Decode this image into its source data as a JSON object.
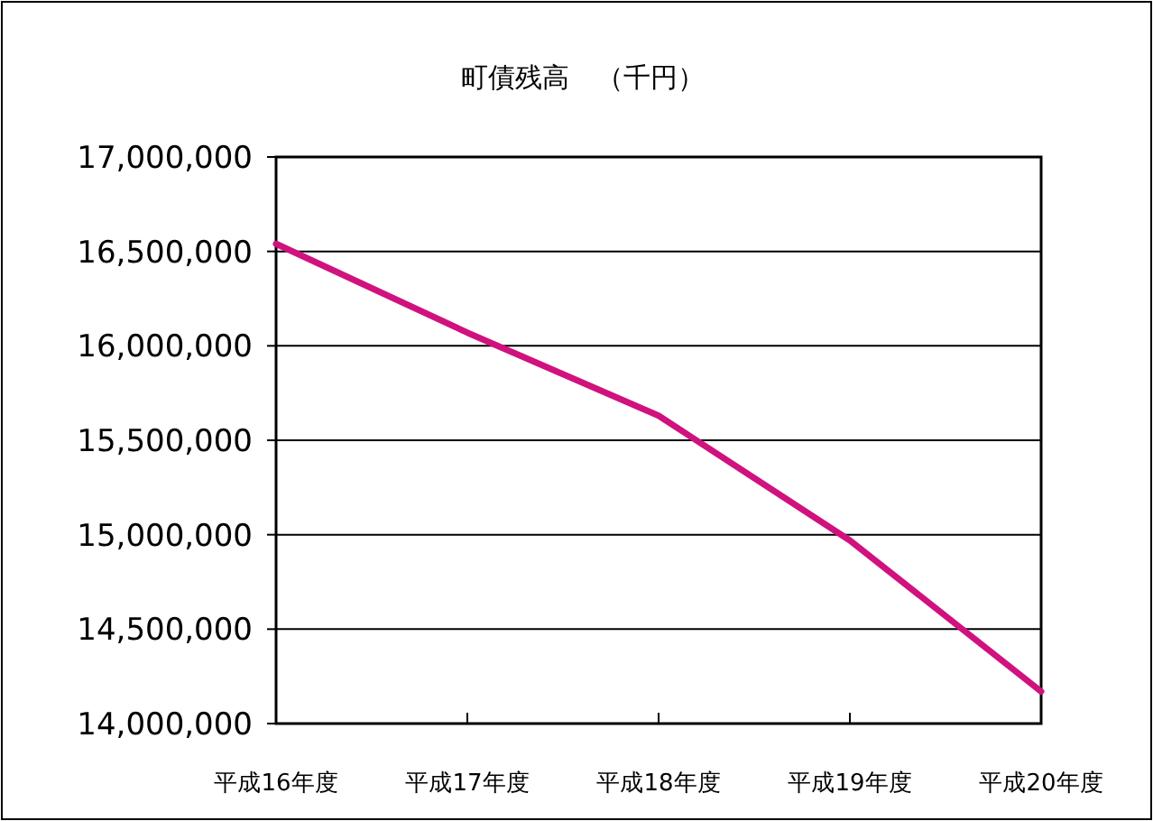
{
  "chart_data": {
    "type": "line",
    "title": "町債残高　（千円）",
    "categories": [
      "平成16年度",
      "平成17年度",
      "平成18年度",
      "平成19年度",
      "平成20年度"
    ],
    "series": [
      {
        "color": "#d0127e",
        "values": [
          16540000,
          16070000,
          15630000,
          14970000,
          14170000
        ]
      }
    ],
    "ylim": [
      14000000,
      17000000
    ],
    "yticks": [
      {
        "value": 14000000,
        "label": "14,000,000"
      },
      {
        "value": 14500000,
        "label": "14,500,000"
      },
      {
        "value": 15000000,
        "label": "15,000,000"
      },
      {
        "value": 15500000,
        "label": "15,500,000"
      },
      {
        "value": 16000000,
        "label": "16,000,000"
      },
      {
        "value": 16500000,
        "label": "16,500,000"
      },
      {
        "value": 17000000,
        "label": "17,000,000"
      }
    ],
    "grid": "y",
    "marker": "none",
    "line_style": "solid"
  }
}
